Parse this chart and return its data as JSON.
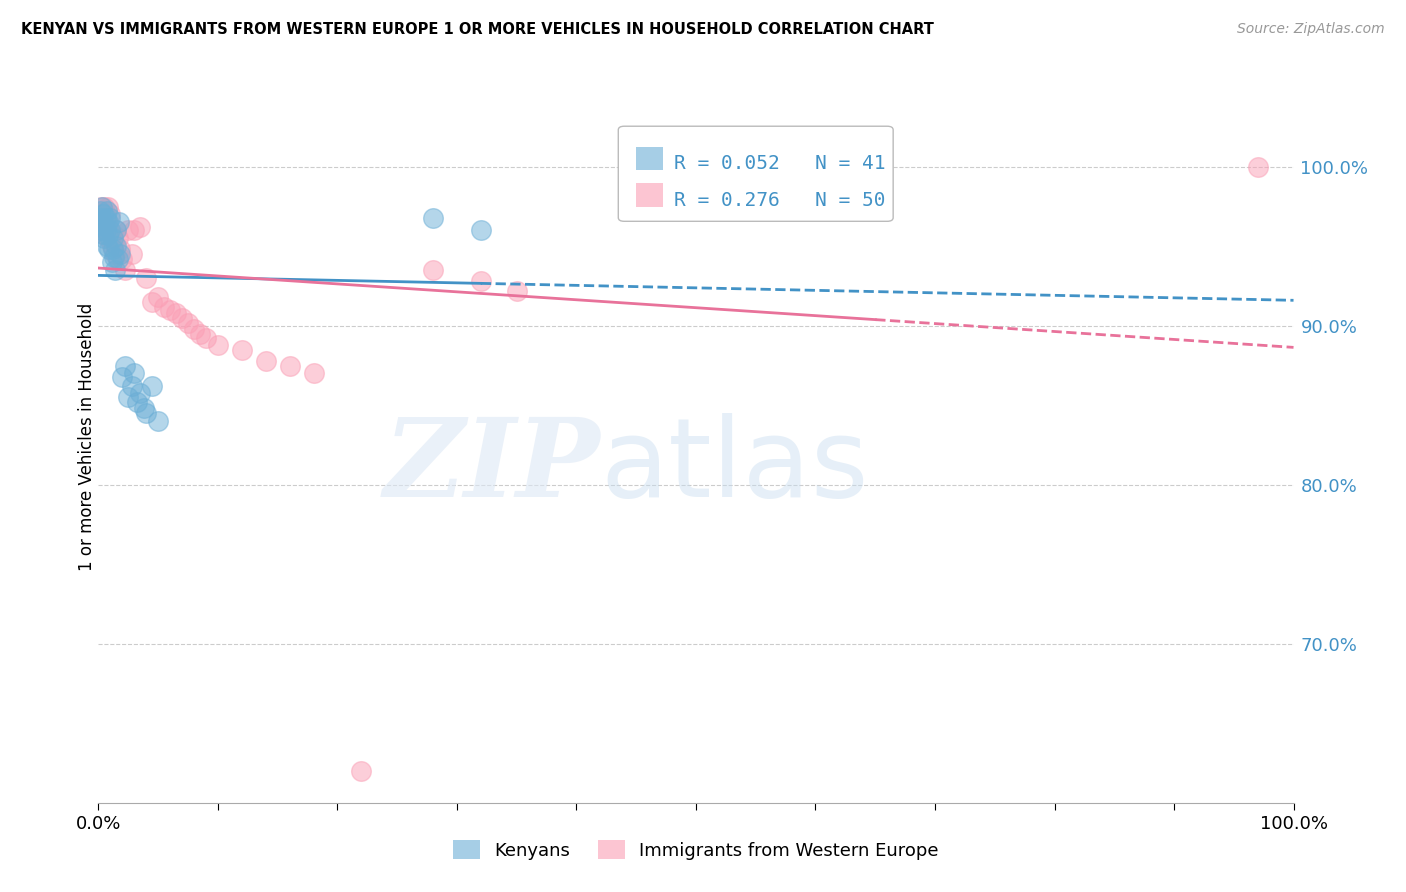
{
  "title": "KENYAN VS IMMIGRANTS FROM WESTERN EUROPE 1 OR MORE VEHICLES IN HOUSEHOLD CORRELATION CHART",
  "source": "Source: ZipAtlas.com",
  "ylabel": "1 or more Vehicles in Household",
  "legend_label1": "Kenyans",
  "legend_label2": "Immigrants from Western Europe",
  "R1": 0.052,
  "N1": 41,
  "R2": 0.276,
  "N2": 50,
  "blue_color": "#6baed6",
  "pink_color": "#fa9fb5",
  "blue_line_color": "#4292c6",
  "pink_line_color": "#e8729a",
  "xlim": [
    0.0,
    1.0
  ],
  "ylim": [
    0.6,
    1.06
  ],
  "yticks": [
    0.7,
    0.8,
    0.9,
    1.0
  ],
  "ytick_labels": [
    "70.0%",
    "80.0%",
    "90.0%",
    "100.0%"
  ],
  "xtick_labels_show": [
    "0.0%",
    "100.0%"
  ],
  "kenyan_x": [
    0.001,
    0.002,
    0.002,
    0.003,
    0.003,
    0.004,
    0.004,
    0.005,
    0.005,
    0.006,
    0.006,
    0.007,
    0.007,
    0.008,
    0.008,
    0.009,
    0.01,
    0.01,
    0.011,
    0.012,
    0.012,
    0.013,
    0.014,
    0.015,
    0.015,
    0.016,
    0.017,
    0.018,
    0.02,
    0.022,
    0.025,
    0.028,
    0.03,
    0.032,
    0.035,
    0.038,
    0.04,
    0.045,
    0.05,
    0.28,
    0.32
  ],
  "kenyan_y": [
    0.972,
    0.968,
    0.96,
    0.975,
    0.965,
    0.958,
    0.97,
    0.963,
    0.955,
    0.968,
    0.96,
    0.972,
    0.95,
    0.965,
    0.957,
    0.948,
    0.96,
    0.968,
    0.94,
    0.955,
    0.948,
    0.943,
    0.935,
    0.96,
    0.95,
    0.942,
    0.965,
    0.945,
    0.868,
    0.875,
    0.855,
    0.862,
    0.87,
    0.852,
    0.858,
    0.848,
    0.845,
    0.862,
    0.84,
    0.968,
    0.96
  ],
  "western_x": [
    0.001,
    0.002,
    0.002,
    0.003,
    0.003,
    0.004,
    0.004,
    0.005,
    0.005,
    0.006,
    0.006,
    0.007,
    0.008,
    0.008,
    0.009,
    0.01,
    0.011,
    0.012,
    0.013,
    0.014,
    0.015,
    0.016,
    0.018,
    0.02,
    0.022,
    0.025,
    0.028,
    0.03,
    0.035,
    0.04,
    0.045,
    0.05,
    0.055,
    0.06,
    0.065,
    0.07,
    0.075,
    0.08,
    0.085,
    0.09,
    0.1,
    0.12,
    0.14,
    0.16,
    0.18,
    0.28,
    0.32,
    0.35,
    0.97,
    0.22
  ],
  "western_y": [
    0.97,
    0.975,
    0.965,
    0.968,
    0.96,
    0.972,
    0.958,
    0.965,
    0.975,
    0.96,
    0.97,
    0.965,
    0.975,
    0.955,
    0.96,
    0.97,
    0.95,
    0.958,
    0.952,
    0.945,
    0.96,
    0.955,
    0.948,
    0.942,
    0.935,
    0.96,
    0.945,
    0.96,
    0.962,
    0.93,
    0.915,
    0.918,
    0.912,
    0.91,
    0.908,
    0.905,
    0.902,
    0.898,
    0.895,
    0.892,
    0.888,
    0.885,
    0.878,
    0.875,
    0.87,
    0.935,
    0.928,
    0.922,
    1.0,
    0.62
  ]
}
